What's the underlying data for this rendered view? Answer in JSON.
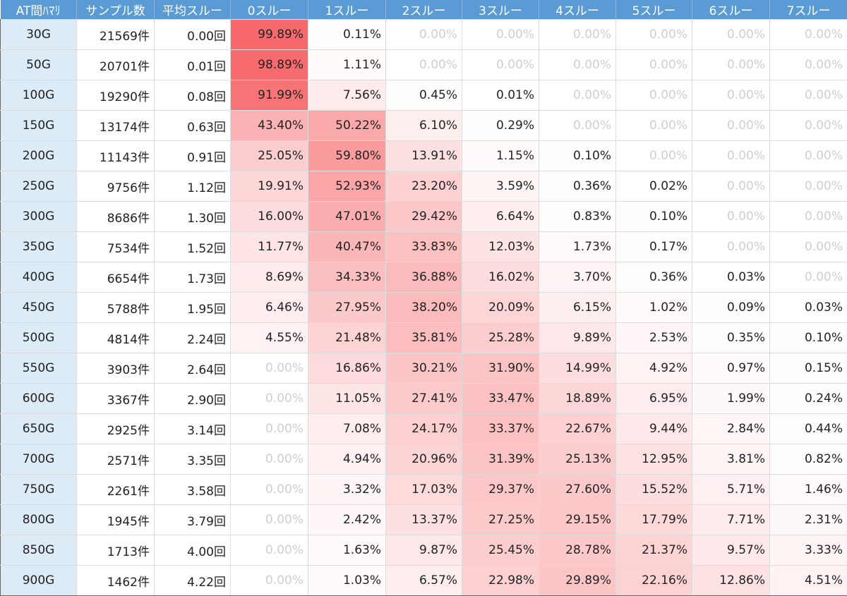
{
  "table": {
    "headers": [
      "AT間ﾊﾏﾘ",
      "サンプル数",
      "平均スルー",
      "0スルー",
      "1スルー",
      "2スルー",
      "3スルー",
      "4スルー",
      "5スルー",
      "6スルー",
      "7スルー"
    ],
    "rows": [
      [
        "30G",
        "21569件",
        "0.00回",
        "99.89%",
        "0.11%",
        "0.00%",
        "0.00%",
        "0.00%",
        "0.00%",
        "0.00%",
        "0.00%"
      ],
      [
        "50G",
        "20701件",
        "0.01回",
        "98.89%",
        "1.11%",
        "0.00%",
        "0.00%",
        "0.00%",
        "0.00%",
        "0.00%",
        "0.00%"
      ],
      [
        "100G",
        "19290件",
        "0.08回",
        "91.99%",
        "7.56%",
        "0.45%",
        "0.01%",
        "0.00%",
        "0.00%",
        "0.00%",
        "0.00%"
      ],
      [
        "150G",
        "13174件",
        "0.63回",
        "43.40%",
        "50.22%",
        "6.10%",
        "0.29%",
        "0.00%",
        "0.00%",
        "0.00%",
        "0.00%"
      ],
      [
        "200G",
        "11143件",
        "0.91回",
        "25.05%",
        "59.80%",
        "13.91%",
        "1.15%",
        "0.10%",
        "0.00%",
        "0.00%",
        "0.00%"
      ],
      [
        "250G",
        "9756件",
        "1.12回",
        "19.91%",
        "52.93%",
        "23.20%",
        "3.59%",
        "0.36%",
        "0.02%",
        "0.00%",
        "0.00%"
      ],
      [
        "300G",
        "8686件",
        "1.30回",
        "16.00%",
        "47.01%",
        "29.42%",
        "6.64%",
        "0.83%",
        "0.10%",
        "0.00%",
        "0.00%"
      ],
      [
        "350G",
        "7534件",
        "1.52回",
        "11.77%",
        "40.47%",
        "33.83%",
        "12.03%",
        "1.73%",
        "0.17%",
        "0.00%",
        "0.00%"
      ],
      [
        "400G",
        "6654件",
        "1.73回",
        "8.69%",
        "34.33%",
        "36.88%",
        "16.02%",
        "3.70%",
        "0.36%",
        "0.03%",
        "0.00%"
      ],
      [
        "450G",
        "5788件",
        "1.95回",
        "6.46%",
        "27.95%",
        "38.20%",
        "20.09%",
        "6.15%",
        "1.02%",
        "0.09%",
        "0.03%"
      ],
      [
        "500G",
        "4814件",
        "2.24回",
        "4.55%",
        "21.48%",
        "35.81%",
        "25.28%",
        "9.89%",
        "2.53%",
        "0.35%",
        "0.10%"
      ],
      [
        "550G",
        "3903件",
        "2.64回",
        "0.00%",
        "16.86%",
        "30.21%",
        "31.90%",
        "14.99%",
        "4.92%",
        "0.97%",
        "0.15%"
      ],
      [
        "600G",
        "3367件",
        "2.90回",
        "0.00%",
        "11.05%",
        "27.41%",
        "33.47%",
        "18.89%",
        "6.95%",
        "1.99%",
        "0.24%"
      ],
      [
        "650G",
        "2925件",
        "3.14回",
        "0.00%",
        "7.08%",
        "24.17%",
        "33.37%",
        "22.67%",
        "9.44%",
        "2.84%",
        "0.44%"
      ],
      [
        "700G",
        "2571件",
        "3.35回",
        "0.00%",
        "4.94%",
        "20.96%",
        "31.39%",
        "25.13%",
        "12.95%",
        "3.81%",
        "0.82%"
      ],
      [
        "750G",
        "2261件",
        "3.58回",
        "0.00%",
        "3.32%",
        "17.03%",
        "29.37%",
        "27.60%",
        "15.52%",
        "5.71%",
        "1.46%"
      ],
      [
        "800G",
        "1945件",
        "3.79回",
        "0.00%",
        "2.42%",
        "13.37%",
        "27.25%",
        "29.15%",
        "17.79%",
        "7.71%",
        "2.31%"
      ],
      [
        "850G",
        "1713件",
        "4.00回",
        "0.00%",
        "1.63%",
        "9.87%",
        "25.45%",
        "28.78%",
        "21.37%",
        "9.57%",
        "3.33%"
      ],
      [
        "900G",
        "1462件",
        "4.22回",
        "0.00%",
        "1.03%",
        "6.57%",
        "22.98%",
        "29.89%",
        "22.16%",
        "12.86%",
        "4.51%"
      ]
    ]
  }
}
